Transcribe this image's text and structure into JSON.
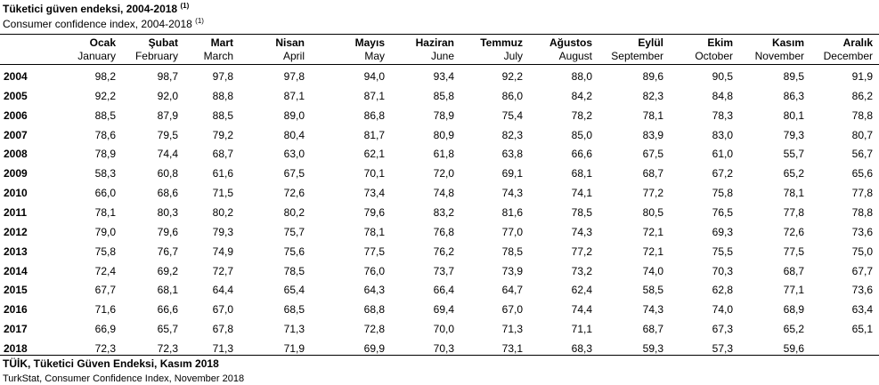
{
  "header": {
    "title": "Tüketici güven endeksi, 2004-2018",
    "title_note": "(1)",
    "subtitle": "Consumer confidence index, 2004-2018",
    "subtitle_note": "(1)"
  },
  "table": {
    "columns": [
      {
        "tr": "Ocak",
        "en": "January"
      },
      {
        "tr": "Şubat",
        "en": "February"
      },
      {
        "tr": "Mart",
        "en": "March"
      },
      {
        "tr": "Nisan",
        "en": "April"
      },
      {
        "tr": "Mayıs",
        "en": "May"
      },
      {
        "tr": "Haziran",
        "en": "June"
      },
      {
        "tr": "Temmuz",
        "en": "July"
      },
      {
        "tr": "Ağustos",
        "en": "August"
      },
      {
        "tr": "Eylül",
        "en": "September"
      },
      {
        "tr": "Ekim",
        "en": "October"
      },
      {
        "tr": "Kasım",
        "en": "November"
      },
      {
        "tr": "Aralık",
        "en": "December"
      }
    ],
    "rows": [
      [
        "2004",
        "98,2",
        "98,7",
        "97,8",
        "97,8",
        "94,0",
        "93,4",
        "92,2",
        "88,0",
        "89,6",
        "90,5",
        "89,5",
        "91,9"
      ],
      [
        "2005",
        "92,2",
        "92,0",
        "88,8",
        "87,1",
        "87,1",
        "85,8",
        "86,0",
        "84,2",
        "82,3",
        "84,8",
        "86,3",
        "86,2"
      ],
      [
        "2006",
        "88,5",
        "87,9",
        "88,5",
        "89,0",
        "86,8",
        "78,9",
        "75,4",
        "78,2",
        "78,1",
        "78,3",
        "80,1",
        "78,8"
      ],
      [
        "2007",
        "78,6",
        "79,5",
        "79,2",
        "80,4",
        "81,7",
        "80,9",
        "82,3",
        "85,0",
        "83,9",
        "83,0",
        "79,3",
        "80,7"
      ],
      [
        "2008",
        "78,9",
        "74,4",
        "68,7",
        "63,0",
        "62,1",
        "61,8",
        "63,8",
        "66,6",
        "67,5",
        "61,0",
        "55,7",
        "56,7"
      ],
      [
        "2009",
        "58,3",
        "60,8",
        "61,6",
        "67,5",
        "70,1",
        "72,0",
        "69,1",
        "68,1",
        "68,7",
        "67,2",
        "65,2",
        "65,6"
      ],
      [
        "2010",
        "66,0",
        "68,6",
        "71,5",
        "72,6",
        "73,4",
        "74,8",
        "74,3",
        "74,1",
        "77,2",
        "75,8",
        "78,1",
        "77,8"
      ],
      [
        "2011",
        "78,1",
        "80,3",
        "80,2",
        "80,2",
        "79,6",
        "83,2",
        "81,6",
        "78,5",
        "80,5",
        "76,5",
        "77,8",
        "78,8"
      ],
      [
        "2012",
        "79,0",
        "79,6",
        "79,3",
        "75,7",
        "78,1",
        "76,8",
        "77,0",
        "74,3",
        "72,1",
        "69,3",
        "72,6",
        "73,6"
      ],
      [
        "2013",
        "75,8",
        "76,7",
        "74,9",
        "75,6",
        "77,5",
        "76,2",
        "78,5",
        "77,2",
        "72,1",
        "75,5",
        "77,5",
        "75,0"
      ],
      [
        "2014",
        "72,4",
        "69,2",
        "72,7",
        "78,5",
        "76,0",
        "73,7",
        "73,9",
        "73,2",
        "74,0",
        "70,3",
        "68,7",
        "67,7"
      ],
      [
        "2015",
        "67,7",
        "68,1",
        "64,4",
        "65,4",
        "64,3",
        "66,4",
        "64,7",
        "62,4",
        "58,5",
        "62,8",
        "77,1",
        "73,6"
      ],
      [
        "2016",
        "71,6",
        "66,6",
        "67,0",
        "68,5",
        "68,8",
        "69,4",
        "67,0",
        "74,4",
        "74,3",
        "74,0",
        "68,9",
        "63,4"
      ],
      [
        "2017",
        "66,9",
        "65,7",
        "67,8",
        "71,3",
        "72,8",
        "70,0",
        "71,3",
        "71,1",
        "68,7",
        "67,3",
        "65,2",
        "65,1"
      ],
      [
        "2018",
        "72,3",
        "72,3",
        "71,3",
        "71,9",
        "69,9",
        "70,3",
        "73,1",
        "68,3",
        "59,3",
        "57,3",
        "59,6",
        null
      ]
    ]
  },
  "footer": {
    "source_tr": "TÜİK, Tüketici Güven Endeksi, Kasım 2018",
    "source_en": "TurkStat, Consumer Confidence Index, November 2018"
  }
}
